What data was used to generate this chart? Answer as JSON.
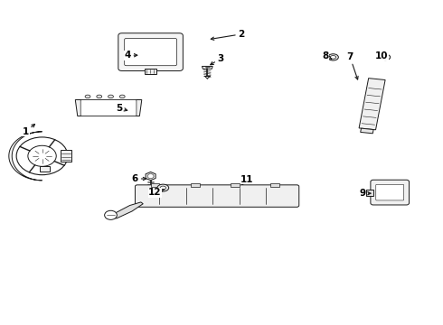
{
  "bg_color": "#ffffff",
  "line_color": "#1a1a1a",
  "label_color": "#000000",
  "label_positions": {
    "1": [
      0.058,
      0.595,
      0.085,
      0.625
    ],
    "2": [
      0.545,
      0.895,
      0.468,
      0.878
    ],
    "3": [
      0.498,
      0.82,
      0.468,
      0.795
    ],
    "4": [
      0.288,
      0.83,
      0.318,
      0.83
    ],
    "5": [
      0.268,
      0.668,
      0.295,
      0.657
    ],
    "6": [
      0.305,
      0.45,
      0.338,
      0.45
    ],
    "7": [
      0.79,
      0.825,
      0.81,
      0.745
    ],
    "8": [
      0.735,
      0.828,
      0.75,
      0.818
    ],
    "9": [
      0.818,
      0.405,
      0.845,
      0.405
    ],
    "10": [
      0.862,
      0.828,
      0.868,
      0.818
    ],
    "11": [
      0.558,
      0.448,
      0.545,
      0.43
    ],
    "12": [
      0.35,
      0.408,
      0.372,
      0.418
    ]
  }
}
